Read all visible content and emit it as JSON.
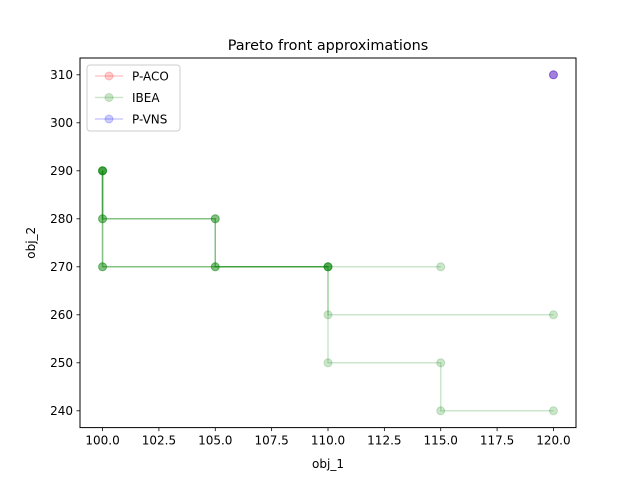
{
  "chart_data": {
    "type": "scatter",
    "title": "Pareto front approximations",
    "xlabel": "obj_1",
    "ylabel": "obj_2",
    "xlim": [
      99.0,
      121.0
    ],
    "ylim": [
      236.5,
      313.5
    ],
    "xticks": [
      100.0,
      102.5,
      105.0,
      107.5,
      110.0,
      112.5,
      115.0,
      117.5,
      120.0
    ],
    "xtick_labels": [
      "100.0",
      "102.5",
      "105.0",
      "107.5",
      "110.0",
      "112.5",
      "115.0",
      "117.5",
      "120.0"
    ],
    "yticks": [
      240,
      250,
      260,
      270,
      280,
      290,
      300,
      310
    ],
    "ytick_labels": [
      "240",
      "250",
      "260",
      "270",
      "280",
      "290",
      "300",
      "310"
    ],
    "legend_position": "upper-left",
    "series": [
      {
        "name": "P-ACO",
        "color": "#ff0000",
        "fronts": [
          [
            [
              120,
              310
            ]
          ]
        ]
      },
      {
        "name": "IBEA",
        "color": "#008000",
        "fronts": [
          [
            [
              100,
              290
            ],
            [
              100,
              270
            ],
            [
              110,
              270
            ],
            [
              110,
              250
            ],
            [
              115,
              250
            ],
            [
              115,
              240
            ],
            [
              120,
              240
            ]
          ],
          [
            [
              100,
              290
            ],
            [
              100,
              270
            ],
            [
              110,
              270
            ],
            [
              110,
              260
            ],
            [
              120,
              260
            ]
          ],
          [
            [
              100,
              290
            ],
            [
              100,
              270
            ],
            [
              115,
              270
            ]
          ],
          [
            [
              100,
              290
            ],
            [
              100,
              280
            ],
            [
              105,
              280
            ],
            [
              105,
              270
            ],
            [
              110,
              270
            ]
          ],
          [
            [
              100,
              290
            ],
            [
              100,
              280
            ],
            [
              105,
              280
            ],
            [
              105,
              270
            ],
            [
              110,
              270
            ]
          ],
          [
            [
              100,
              290
            ],
            [
              100,
              280
            ],
            [
              105,
              280
            ],
            [
              105,
              270
            ],
            [
              110,
              270
            ]
          ]
        ]
      },
      {
        "name": "P-VNS",
        "color": "#0000ff",
        "fronts": [
          [
            [
              120,
              310
            ]
          ],
          [
            [
              120,
              310
            ]
          ]
        ]
      }
    ]
  }
}
